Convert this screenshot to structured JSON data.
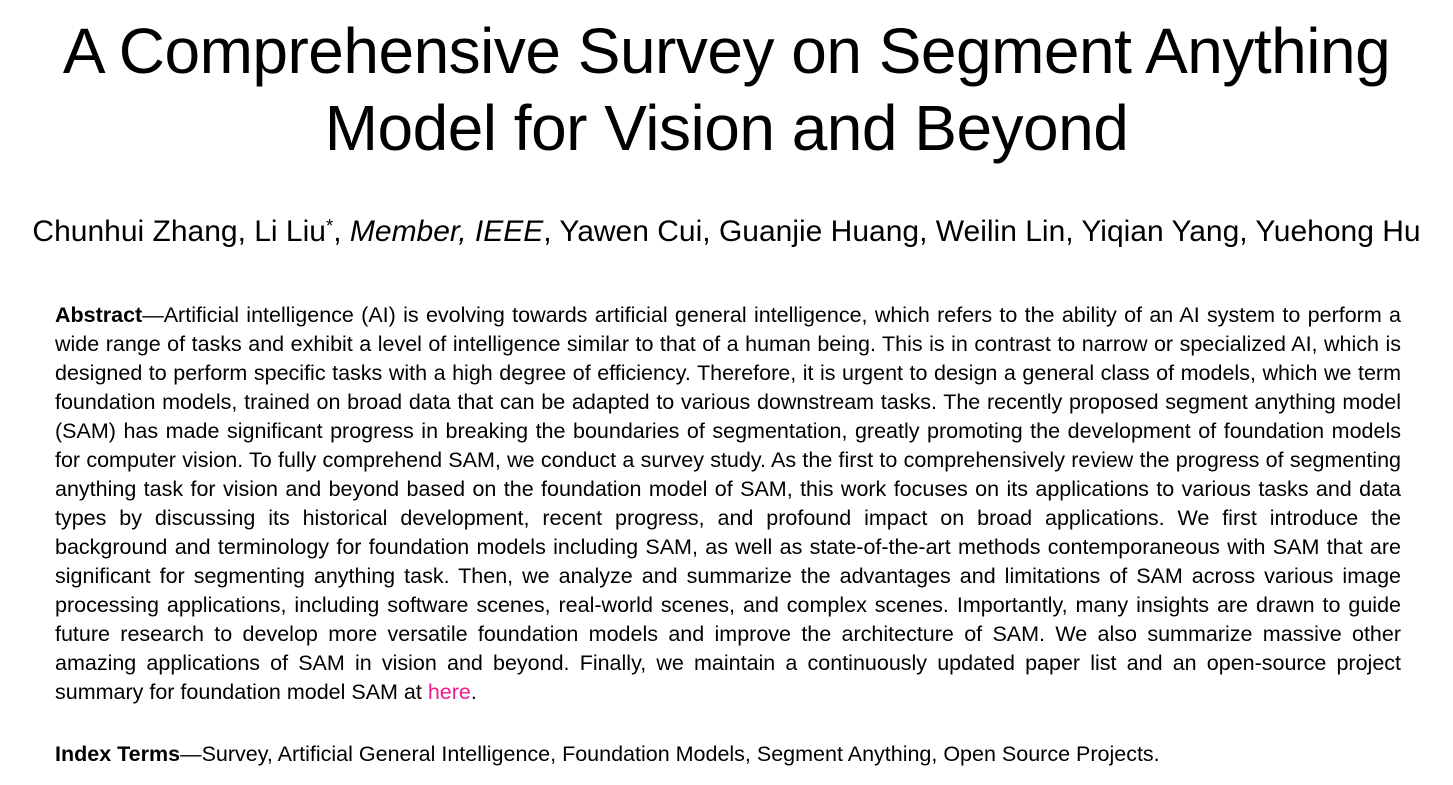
{
  "page": {
    "background_color": "#ffffff",
    "text_color": "#000000"
  },
  "title": {
    "full": "A Comprehensive Survey on Segment Anything Model for Vision and Beyond",
    "lines": [
      "A Comprehensive Survey on Segment Anything",
      "Model for Vision and Beyond"
    ]
  },
  "authors": {
    "part1": "Chunhui Zhang, Li Liu",
    "asterisk": "*",
    "separator": ", ",
    "membership_italic": "Member, IEEE",
    "part2": ", Yawen Cui, Guanjie Huang, Weilin Lin, Yiqian Yang, Yuehong Hu"
  },
  "abstract": {
    "label": "Abstract",
    "text": "—Artificial intelligence (AI) is evolving towards artificial general intelligence, which refers to the ability of an AI system to perform a wide range of tasks and exhibit a level of intelligence similar to that of a human being. This is in contrast to narrow or specialized AI, which is designed to perform specific tasks with a high degree of efficiency. Therefore, it is urgent to design a general class of models, which we term foundation models, trained on broad data that can be adapted to various downstream tasks. The recently proposed segment anything model (SAM) has made significant progress in breaking the boundaries of segmentation, greatly promoting the development of foundation models for computer vision. To fully comprehend SAM, we conduct a survey study. As the first to comprehensively review the progress of segmenting anything task for vision and beyond based on the foundation model of SAM, this work focuses on its applications to various tasks and data types by discussing its historical development, recent progress, and profound impact on broad applications. We first introduce the background and terminology for foundation models including SAM, as well as state-of-the-art methods contemporaneous with SAM that are significant for segmenting anything task. Then, we analyze and summarize the advantages and limitations of SAM across various image processing applications, including software scenes, real-world scenes, and complex scenes. Importantly, many insights are drawn to guide future research to develop more versatile foundation models and improve the architecture of SAM. We also summarize massive other amazing applications of SAM in vision and beyond. Finally, we maintain a continuously updated paper list and an open-source project summary for foundation model SAM at ",
    "link_label": "here",
    "link_suffix": ".",
    "link_color": "#ee1c8f"
  },
  "index_terms": {
    "label": "Index Terms",
    "text": "—Survey, Artificial General Intelligence, Foundation Models, Segment Anything, Open Source Projects."
  }
}
